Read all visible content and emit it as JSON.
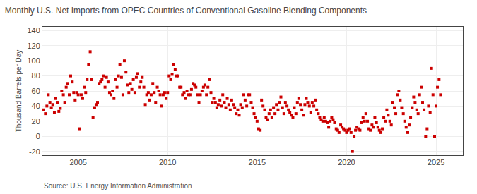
{
  "chart_data": {
    "type": "scatter",
    "title": "Monthly U.S. Net Imports from OPEC Countries of Conventional Gasoline Blending Components",
    "ylabel": "Thousand Barrels per Day",
    "annotations": [
      "Source: U.S. Energy Information Administration"
    ],
    "color": "#cc0000",
    "marker": "square",
    "grid": true,
    "xlim": [
      2003.0,
      2026.5
    ],
    "ylim": [
      -25,
      145
    ],
    "xticks": [
      2005,
      2010,
      2015,
      2020,
      2025
    ],
    "yticks": [
      -20,
      0,
      20,
      40,
      60,
      80,
      100,
      120,
      140
    ],
    "x": [
      2003.08,
      2003.17,
      2003.25,
      2003.33,
      2003.42,
      2003.5,
      2003.58,
      2003.67,
      2003.75,
      2003.83,
      2003.92,
      2004.0,
      2004.08,
      2004.17,
      2004.25,
      2004.33,
      2004.42,
      2004.5,
      2004.58,
      2004.67,
      2004.75,
      2004.83,
      2004.92,
      2005.0,
      2005.08,
      2005.17,
      2005.25,
      2005.33,
      2005.42,
      2005.5,
      2005.58,
      2005.67,
      2005.75,
      2005.83,
      2005.92,
      2006.0,
      2006.08,
      2006.17,
      2006.25,
      2006.33,
      2006.42,
      2006.5,
      2006.58,
      2006.67,
      2006.75,
      2006.83,
      2006.92,
      2007.0,
      2007.08,
      2007.17,
      2007.25,
      2007.33,
      2007.42,
      2007.5,
      2007.58,
      2007.67,
      2007.75,
      2007.83,
      2007.92,
      2008.0,
      2008.08,
      2008.17,
      2008.25,
      2008.33,
      2008.42,
      2008.5,
      2008.58,
      2008.67,
      2008.75,
      2008.83,
      2008.92,
      2009.0,
      2009.08,
      2009.17,
      2009.25,
      2009.33,
      2009.42,
      2009.5,
      2009.58,
      2009.67,
      2009.75,
      2009.83,
      2009.92,
      2010.0,
      2010.08,
      2010.17,
      2010.25,
      2010.33,
      2010.42,
      2010.5,
      2010.58,
      2010.67,
      2010.75,
      2010.83,
      2010.92,
      2011.0,
      2011.08,
      2011.17,
      2011.25,
      2011.33,
      2011.42,
      2011.5,
      2011.58,
      2011.67,
      2011.75,
      2011.83,
      2011.92,
      2012.0,
      2012.08,
      2012.17,
      2012.25,
      2012.33,
      2012.42,
      2012.5,
      2012.58,
      2012.67,
      2012.75,
      2012.83,
      2012.92,
      2013.0,
      2013.08,
      2013.17,
      2013.25,
      2013.33,
      2013.42,
      2013.5,
      2013.58,
      2013.67,
      2013.75,
      2013.83,
      2013.92,
      2014.0,
      2014.08,
      2014.17,
      2014.25,
      2014.33,
      2014.42,
      2014.5,
      2014.58,
      2014.67,
      2014.75,
      2014.83,
      2014.92,
      2015.0,
      2015.08,
      2015.17,
      2015.25,
      2015.33,
      2015.42,
      2015.5,
      2015.58,
      2015.67,
      2015.75,
      2015.83,
      2015.92,
      2016.0,
      2016.08,
      2016.17,
      2016.25,
      2016.33,
      2016.42,
      2016.5,
      2016.58,
      2016.67,
      2016.75,
      2016.83,
      2016.92,
      2017.0,
      2017.08,
      2017.17,
      2017.25,
      2017.33,
      2017.42,
      2017.5,
      2017.58,
      2017.67,
      2017.75,
      2017.83,
      2017.92,
      2018.0,
      2018.08,
      2018.17,
      2018.25,
      2018.33,
      2018.42,
      2018.5,
      2018.58,
      2018.67,
      2018.75,
      2018.83,
      2018.92,
      2019.0,
      2019.08,
      2019.17,
      2019.25,
      2019.33,
      2019.42,
      2019.5,
      2019.58,
      2019.67,
      2019.75,
      2019.83,
      2019.92,
      2020.0,
      2020.08,
      2020.17,
      2020.25,
      2020.33,
      2020.42,
      2020.5,
      2020.58,
      2020.67,
      2020.75,
      2020.83,
      2020.92,
      2021.0,
      2021.08,
      2021.17,
      2021.25,
      2021.33,
      2021.42,
      2021.5,
      2021.58,
      2021.67,
      2021.75,
      2021.83,
      2021.92,
      2022.0,
      2022.08,
      2022.17,
      2022.25,
      2022.33,
      2022.42,
      2022.5,
      2022.58,
      2022.67,
      2022.75,
      2022.83,
      2022.92,
      2023.0,
      2023.08,
      2023.17,
      2023.25,
      2023.33,
      2023.42,
      2023.5,
      2023.58,
      2023.67,
      2023.75,
      2023.83,
      2023.92,
      2024.0,
      2024.08,
      2024.17,
      2024.25,
      2024.33,
      2024.42,
      2024.5,
      2024.58,
      2024.67,
      2024.75,
      2024.83,
      2024.92,
      2025.0,
      2025.08,
      2025.17,
      2025.25
    ],
    "values": [
      35,
      30,
      40,
      55,
      45,
      38,
      42,
      32,
      50,
      45,
      33,
      37,
      60,
      55,
      45,
      65,
      70,
      55,
      80,
      72,
      58,
      48,
      58,
      55,
      10,
      55,
      50,
      65,
      58,
      75,
      95,
      112,
      75,
      25,
      38,
      42,
      45,
      70,
      72,
      75,
      80,
      65,
      78,
      72,
      58,
      55,
      60,
      50,
      75,
      65,
      80,
      95,
      78,
      55,
      100,
      85,
      68,
      58,
      70,
      62,
      75,
      58,
      78,
      83,
      65,
      72,
      78,
      65,
      42,
      55,
      58,
      48,
      55,
      70,
      58,
      45,
      65,
      60,
      55,
      40,
      55,
      58,
      50,
      58,
      80,
      75,
      82,
      95,
      88,
      80,
      80,
      65,
      65,
      55,
      58,
      50,
      60,
      55,
      55,
      62,
      70,
      68,
      65,
      55,
      45,
      55,
      60,
      65,
      68,
      55,
      65,
      75,
      58,
      45,
      50,
      45,
      38,
      42,
      48,
      40,
      55,
      45,
      38,
      50,
      42,
      35,
      48,
      42,
      38,
      30,
      35,
      28,
      42,
      38,
      55,
      48,
      40,
      55,
      55,
      45,
      38,
      30,
      25,
      20,
      10,
      8,
      48,
      40,
      35,
      25,
      22,
      30,
      35,
      25,
      38,
      30,
      42,
      35,
      45,
      52,
      38,
      30,
      45,
      40,
      35,
      32,
      28,
      25,
      38,
      30,
      45,
      50,
      42,
      35,
      28,
      42,
      50,
      45,
      40,
      32,
      45,
      40,
      48,
      35,
      30,
      25,
      22,
      20,
      25,
      20,
      18,
      12,
      20,
      25,
      22,
      18,
      10,
      8,
      5,
      15,
      12,
      10,
      8,
      5,
      8,
      10,
      5,
      -20,
      0,
      8,
      12,
      10,
      8,
      18,
      25,
      20,
      30,
      20,
      10,
      8,
      15,
      12,
      25,
      18,
      12,
      8,
      5,
      10,
      25,
      20,
      35,
      28,
      20,
      15,
      45,
      38,
      30,
      55,
      60,
      48,
      38,
      30,
      20,
      12,
      5,
      15,
      25,
      38,
      52,
      45,
      35,
      30,
      55,
      65,
      45,
      35,
      0,
      10,
      40,
      32,
      90,
      55,
      0,
      40,
      65,
      75,
      55
    ]
  }
}
